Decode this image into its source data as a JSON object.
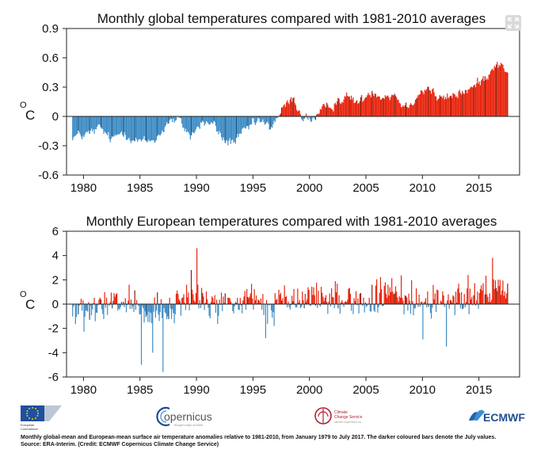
{
  "chart_data": [
    {
      "type": "bar",
      "title": "Monthly global temperatures compared with 1981-2010 averages",
      "ylabel_unit": "C",
      "ylabel_degree": "O",
      "ylim": [
        -0.6,
        0.9
      ],
      "yticks": [
        "0.9",
        "0.6",
        "0.3",
        "0",
        "-0.3",
        "-0.6"
      ],
      "ytick_values": [
        0.9,
        0.6,
        0.3,
        0,
        -0.3,
        -0.6
      ],
      "xlim": [
        1978.5,
        2018.6
      ],
      "xticks": [
        "1980",
        "1985",
        "1990",
        "1995",
        "2000",
        "2005",
        "2010",
        "2015"
      ],
      "xtick_values": [
        1980,
        1985,
        1990,
        1995,
        2000,
        2005,
        2010,
        2015
      ],
      "time_range": "1979-01 to 2017-07",
      "annual_anomaly": [
        [
          1979,
          -0.2
        ],
        [
          1980,
          -0.18
        ],
        [
          1981,
          -0.12
        ],
        [
          1982,
          -0.25
        ],
        [
          1983,
          -0.14
        ],
        [
          1984,
          -0.24
        ],
        [
          1985,
          -0.27
        ],
        [
          1986,
          -0.22
        ],
        [
          1987,
          -0.05
        ],
        [
          1988,
          -0.05
        ],
        [
          1989,
          -0.2
        ],
        [
          1990,
          -0.06
        ],
        [
          1991,
          -0.08
        ],
        [
          1992,
          -0.26
        ],
        [
          1993,
          -0.25
        ],
        [
          1994,
          -0.13
        ],
        [
          1995,
          -0.04
        ],
        [
          1996,
          -0.12
        ],
        [
          1997,
          0.05
        ],
        [
          1998,
          0.18
        ],
        [
          1999,
          -0.02
        ],
        [
          2000,
          -0.02
        ],
        [
          2001,
          0.08
        ],
        [
          2002,
          0.17
        ],
        [
          2003,
          0.19
        ],
        [
          2004,
          0.14
        ],
        [
          2005,
          0.27
        ],
        [
          2006,
          0.21
        ],
        [
          2007,
          0.23
        ],
        [
          2008,
          0.09
        ],
        [
          2009,
          0.22
        ],
        [
          2010,
          0.3
        ],
        [
          2011,
          0.17
        ],
        [
          2012,
          0.2
        ],
        [
          2013,
          0.25
        ],
        [
          2014,
          0.29
        ],
        [
          2015,
          0.4
        ],
        [
          2016,
          0.55
        ],
        [
          2017,
          0.47
        ]
      ],
      "noise": 0.09,
      "colors": {
        "positive": "#e8230c",
        "negative": "#3e8cc5",
        "positive_july": "#8e1a0c",
        "negative_july": "#1c5a8a"
      }
    },
    {
      "type": "bar",
      "title": "Monthly European temperatures compared with 1981-2010 averages",
      "ylabel_unit": "C",
      "ylabel_degree": "O",
      "ylim": [
        -6,
        6
      ],
      "yticks": [
        "6",
        "4",
        "2",
        "0",
        "-2",
        "-4",
        "-6"
      ],
      "ytick_values": [
        6,
        4,
        2,
        0,
        -2,
        -4,
        -6
      ],
      "xlim": [
        1978.5,
        2018.6
      ],
      "xticks": [
        "1980",
        "1985",
        "1990",
        "1995",
        "2000",
        "2005",
        "2010",
        "2015"
      ],
      "xtick_values": [
        1980,
        1985,
        1990,
        1995,
        2000,
        2005,
        2010,
        2015
      ],
      "time_range": "1979-01 to 2017-07",
      "annual_anomaly": [
        [
          1979,
          -0.6
        ],
        [
          1980,
          -0.9
        ],
        [
          1981,
          -0.3
        ],
        [
          1982,
          -0.1
        ],
        [
          1983,
          0.1
        ],
        [
          1984,
          -0.3
        ],
        [
          1985,
          -1.1
        ],
        [
          1986,
          -0.6
        ],
        [
          1987,
          -1.0
        ],
        [
          1988,
          0.1
        ],
        [
          1989,
          0.7
        ],
        [
          1990,
          0.6
        ],
        [
          1991,
          -0.4
        ],
        [
          1992,
          0.3
        ],
        [
          1993,
          -0.2
        ],
        [
          1994,
          0.5
        ],
        [
          1995,
          0.1
        ],
        [
          1996,
          -0.5
        ],
        [
          1997,
          0.3
        ],
        [
          1998,
          0.1
        ],
        [
          1999,
          0.4
        ],
        [
          2000,
          0.8
        ],
        [
          2001,
          0.3
        ],
        [
          2002,
          0.6
        ],
        [
          2003,
          0.4
        ],
        [
          2004,
          0.2
        ],
        [
          2005,
          0.1
        ],
        [
          2006,
          0.7
        ],
        [
          2007,
          1.0
        ],
        [
          2008,
          0.6
        ],
        [
          2009,
          0.3
        ],
        [
          2010,
          -0.2
        ],
        [
          2011,
          0.6
        ],
        [
          2012,
          0.4
        ],
        [
          2013,
          0.3
        ],
        [
          2014,
          1.0
        ],
        [
          2015,
          0.9
        ],
        [
          2016,
          0.9
        ],
        [
          2017,
          0.8
        ]
      ],
      "noise": 1.1,
      "notable_months": [
        [
          1985.08,
          -5.0
        ],
        [
          1987.04,
          -5.6
        ],
        [
          1986.12,
          -4.0
        ],
        [
          1989.96,
          4.6
        ],
        [
          1989.5,
          2.8
        ],
        [
          2010.0,
          -2.9
        ],
        [
          2012.1,
          -3.5
        ],
        [
          2016.2,
          3.8
        ],
        [
          2014.0,
          2.4
        ],
        [
          1996.1,
          -2.8
        ],
        [
          1984.0,
          1.6
        ]
      ],
      "colors": {
        "positive": "#e8230c",
        "negative": "#3e8cc5",
        "positive_july": "#8e1a0c",
        "negative_july": "#1c5a8a"
      }
    }
  ],
  "logos": {
    "eu": {
      "line1": "European",
      "line2": "Commission"
    },
    "copernicus": {
      "text": "opernicus",
      "tagline": "Europe's eyes on Earth"
    },
    "c3s": {
      "line1": "Climate",
      "line2": "Change Service",
      "line3": "climate.copernicus.eu"
    },
    "ecmwf": {
      "text": "ECMWF"
    }
  },
  "caption": {
    "line1": "Monthly global-mean and European-mean surface air temperature anomalies relative to 1981-2010, from January 1979 to July 2017. The darker coloured bars denote the July values.",
    "line2": "Source: ERA-Interim. (Credit: ECMWF Copernicus Climate Change Service)"
  },
  "icons": {
    "expand": "expand-icon"
  }
}
